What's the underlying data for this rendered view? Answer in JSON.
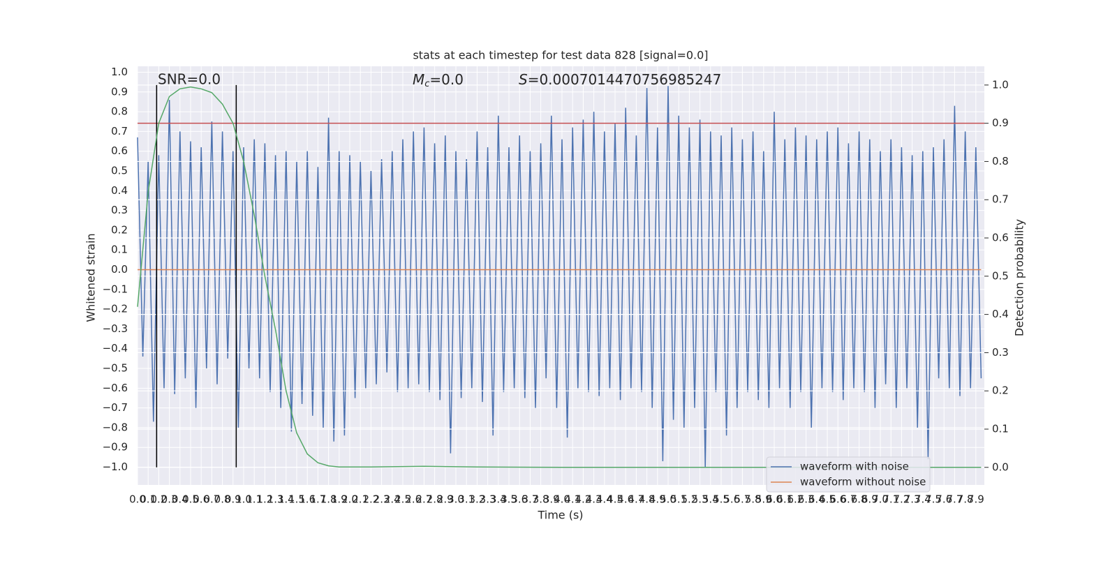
{
  "chart_data": {
    "type": "line",
    "title": "stats at each timestep for test data 828 [signal=0.0]",
    "xlabel": "Time (s)",
    "ylabel": "Whitened strain",
    "y2label": "Detection probability",
    "annotations": {
      "snr": "SNR=0.0",
      "mc": {
        "italic": "M",
        "sub": "c",
        "rest": "=0.0"
      },
      "s": {
        "italic": "S",
        "rest": "=0.0007014470756985247"
      }
    },
    "xlim": [
      0,
      7.98
    ],
    "ylim": [
      -1.09,
      1.03
    ],
    "y2lim": [
      -0.046,
      1.049
    ],
    "grid": true,
    "legend": "lower right",
    "xticks": [
      {
        "value": 0,
        "label": "0.0"
      },
      {
        "value": 0.1,
        "label": "0.1"
      },
      {
        "value": 0.2,
        "label": "0.2"
      },
      {
        "value": 0.3,
        "label": "0.3"
      },
      {
        "value": 0.4,
        "label": "0.4"
      },
      {
        "value": 0.5,
        "label": "0.5"
      },
      {
        "value": 0.6,
        "label": "0.6"
      },
      {
        "value": 0.7,
        "label": "0.7"
      },
      {
        "value": 0.8,
        "label": "0.8"
      },
      {
        "value": 0.9,
        "label": "0.9"
      },
      {
        "value": 1,
        "label": "1.0"
      },
      {
        "value": 1.1,
        "label": "1.1"
      },
      {
        "value": 1.2,
        "label": "1.2"
      },
      {
        "value": 1.3,
        "label": "1.3"
      },
      {
        "value": 1.4,
        "label": "1.4"
      },
      {
        "value": 1.5,
        "label": "1.5"
      },
      {
        "value": 1.6,
        "label": "1.6"
      },
      {
        "value": 1.7,
        "label": "1.7"
      },
      {
        "value": 1.8,
        "label": "1.8"
      },
      {
        "value": 1.9,
        "label": "1.9"
      },
      {
        "value": 2,
        "label": "2.0"
      },
      {
        "value": 2.1,
        "label": "2.1"
      },
      {
        "value": 2.2,
        "label": "2.2"
      },
      {
        "value": 2.3,
        "label": "2.3"
      },
      {
        "value": 2.4,
        "label": "2.4"
      },
      {
        "value": 2.5,
        "label": "2.5"
      },
      {
        "value": 2.6,
        "label": "2.6"
      },
      {
        "value": 2.7,
        "label": "2.7"
      },
      {
        "value": 2.8,
        "label": "2.8"
      },
      {
        "value": 2.9,
        "label": "2.9"
      },
      {
        "value": 3,
        "label": "3.0"
      },
      {
        "value": 3.1,
        "label": "3.1"
      },
      {
        "value": 3.2,
        "label": "3.2"
      },
      {
        "value": 3.3,
        "label": "3.3"
      },
      {
        "value": 3.4,
        "label": "3.4"
      },
      {
        "value": 3.5,
        "label": "3.5"
      },
      {
        "value": 3.6,
        "label": "3.6"
      },
      {
        "value": 3.7,
        "label": "3.7"
      },
      {
        "value": 3.8,
        "label": "3.8"
      },
      {
        "value": 3.9,
        "label": "3.9"
      },
      {
        "value": 4,
        "label": "4.0"
      },
      {
        "value": 4.1,
        "label": "4.1"
      },
      {
        "value": 4.2,
        "label": "4.2"
      },
      {
        "value": 4.3,
        "label": "4.3"
      },
      {
        "value": 4.4,
        "label": "4.4"
      },
      {
        "value": 4.5,
        "label": "4.5"
      },
      {
        "value": 4.6,
        "label": "4.6"
      },
      {
        "value": 4.7,
        "label": "4.7"
      },
      {
        "value": 4.8,
        "label": "4.8"
      },
      {
        "value": 4.9,
        "label": "4.9"
      },
      {
        "value": 5,
        "label": "5.0"
      },
      {
        "value": 5.1,
        "label": "5.1"
      },
      {
        "value": 5.2,
        "label": "5.2"
      },
      {
        "value": 5.3,
        "label": "5.3"
      },
      {
        "value": 5.4,
        "label": "5.4"
      },
      {
        "value": 5.5,
        "label": "5.5"
      },
      {
        "value": 5.6,
        "label": "5.6"
      },
      {
        "value": 5.7,
        "label": "5.7"
      },
      {
        "value": 5.8,
        "label": "5.8"
      },
      {
        "value": 5.9,
        "label": "5.9"
      },
      {
        "value": 6,
        "label": "6.0"
      },
      {
        "value": 6.1,
        "label": "6.1"
      },
      {
        "value": 6.2,
        "label": "6.2"
      },
      {
        "value": 6.3,
        "label": "6.3"
      },
      {
        "value": 6.4,
        "label": "6.4"
      },
      {
        "value": 6.5,
        "label": "6.5"
      },
      {
        "value": 6.6,
        "label": "6.6"
      },
      {
        "value": 6.7,
        "label": "6.7"
      },
      {
        "value": 6.8,
        "label": "6.8"
      },
      {
        "value": 6.9,
        "label": "6.9"
      },
      {
        "value": 7,
        "label": "7.0"
      },
      {
        "value": 7.1,
        "label": "7.1"
      },
      {
        "value": 7.2,
        "label": "7.2"
      },
      {
        "value": 7.3,
        "label": "7.3"
      },
      {
        "value": 7.4,
        "label": "7.4"
      },
      {
        "value": 7.5,
        "label": "7.5"
      },
      {
        "value": 7.6,
        "label": "7.6"
      },
      {
        "value": 7.7,
        "label": "7.7"
      },
      {
        "value": 7.8,
        "label": "7.8"
      },
      {
        "value": 7.9,
        "label": "7.9"
      }
    ],
    "yticks": [
      {
        "value": -1,
        "label": "−1.0"
      },
      {
        "value": -0.9,
        "label": "−0.9"
      },
      {
        "value": -0.8,
        "label": "−0.8"
      },
      {
        "value": -0.7,
        "label": "−0.7"
      },
      {
        "value": -0.6,
        "label": "−0.6"
      },
      {
        "value": -0.5,
        "label": "−0.5"
      },
      {
        "value": -0.4,
        "label": "−0.4"
      },
      {
        "value": -0.3,
        "label": "−0.3"
      },
      {
        "value": -0.2,
        "label": "−0.2"
      },
      {
        "value": -0.1,
        "label": "−0.1"
      },
      {
        "value": 0,
        "label": "0.0"
      },
      {
        "value": 0.1,
        "label": "0.1"
      },
      {
        "value": 0.2,
        "label": "0.2"
      },
      {
        "value": 0.3,
        "label": "0.3"
      },
      {
        "value": 0.4,
        "label": "0.4"
      },
      {
        "value": 0.5,
        "label": "0.5"
      },
      {
        "value": 0.6,
        "label": "0.6"
      },
      {
        "value": 0.7,
        "label": "0.7"
      },
      {
        "value": 0.8,
        "label": "0.8"
      },
      {
        "value": 0.9,
        "label": "0.9"
      },
      {
        "value": 1,
        "label": "1.0"
      }
    ],
    "y2ticks": [
      {
        "value": 0,
        "label": "0.0"
      },
      {
        "value": 0.1,
        "label": "0.1"
      },
      {
        "value": 0.2,
        "label": "0.2"
      },
      {
        "value": 0.3,
        "label": "0.3"
      },
      {
        "value": 0.4,
        "label": "0.4"
      },
      {
        "value": 0.5,
        "label": "0.5"
      },
      {
        "value": 0.6,
        "label": "0.6"
      },
      {
        "value": 0.7,
        "label": "0.7"
      },
      {
        "value": 0.8,
        "label": "0.8"
      },
      {
        "value": 0.9,
        "label": "0.9"
      },
      {
        "value": 1,
        "label": "1.0"
      }
    ],
    "series": [
      {
        "name": "waveform with noise",
        "color": "#4c72b0",
        "x": [
          0,
          0.05,
          0.1,
          0.15,
          0.2,
          0.25,
          0.3,
          0.35,
          0.4,
          0.45,
          0.5,
          0.55,
          0.6,
          0.65,
          0.7,
          0.75,
          0.8,
          0.85,
          0.9,
          0.95,
          1,
          1.05,
          1.1,
          1.15,
          1.2,
          1.25,
          1.3,
          1.35,
          1.4,
          1.45,
          1.5,
          1.55,
          1.6,
          1.65,
          1.7,
          1.75,
          1.8,
          1.85,
          1.9,
          1.95,
          2,
          2.05,
          2.1,
          2.15,
          2.2,
          2.25,
          2.3,
          2.35,
          2.4,
          2.45,
          2.5,
          2.55,
          2.6,
          2.65,
          2.7,
          2.75,
          2.8,
          2.85,
          2.9,
          2.95,
          3,
          3.05,
          3.1,
          3.15,
          3.2,
          3.25,
          3.3,
          3.35,
          3.4,
          3.45,
          3.5,
          3.55,
          3.6,
          3.65,
          3.7,
          3.75,
          3.8,
          3.85,
          3.9,
          3.95,
          4,
          4.05,
          4.1,
          4.15,
          4.2,
          4.25,
          4.3,
          4.35,
          4.4,
          4.45,
          4.5,
          4.55,
          4.6,
          4.65,
          4.7,
          4.75,
          4.8,
          4.85,
          4.9,
          4.95,
          5,
          5.05,
          5.1,
          5.15,
          5.2,
          5.25,
          5.3,
          5.35,
          5.4,
          5.45,
          5.5,
          5.55,
          5.6,
          5.65,
          5.7,
          5.75,
          5.8,
          5.85,
          5.9,
          5.95,
          6,
          6.05,
          6.1,
          6.15,
          6.2,
          6.25,
          6.3,
          6.35,
          6.4,
          6.45,
          6.5,
          6.55,
          6.6,
          6.65,
          6.7,
          6.75,
          6.8,
          6.85,
          6.9,
          6.95,
          7,
          7.05,
          7.1,
          7.15,
          7.2,
          7.25,
          7.3,
          7.35,
          7.4,
          7.45,
          7.5,
          7.55,
          7.6,
          7.65,
          7.7,
          7.75,
          7.8,
          7.85,
          7.9,
          7.95
        ],
        "values": [
          0.67,
          -0.44,
          0.55,
          -0.77,
          0.58,
          -0.6,
          0.86,
          -0.63,
          0.7,
          -0.55,
          0.65,
          -0.7,
          0.62,
          -0.5,
          0.75,
          -0.58,
          0.7,
          -0.45,
          0.6,
          -0.8,
          0.62,
          -0.5,
          0.66,
          -0.55,
          0.64,
          -0.62,
          0.58,
          -0.7,
          0.6,
          -0.82,
          0.55,
          -0.68,
          0.6,
          -0.74,
          0.52,
          -0.8,
          0.77,
          -0.87,
          0.6,
          -0.84,
          0.58,
          -0.65,
          0.55,
          -0.6,
          0.5,
          -0.58,
          0.56,
          -0.52,
          0.6,
          -0.62,
          0.66,
          -0.6,
          0.7,
          -0.58,
          0.72,
          -0.62,
          0.64,
          -0.66,
          0.68,
          -0.93,
          0.6,
          -0.65,
          0.56,
          -0.6,
          0.7,
          -0.67,
          0.62,
          -0.84,
          0.78,
          -0.62,
          0.62,
          -0.6,
          0.68,
          -0.65,
          0.6,
          -0.7,
          0.64,
          -0.55,
          0.78,
          -0.7,
          0.66,
          -0.85,
          0.72,
          -0.6,
          0.76,
          -0.62,
          0.8,
          -0.64,
          0.7,
          -0.6,
          0.74,
          -0.66,
          0.82,
          -0.6,
          0.68,
          -0.62,
          0.92,
          -0.7,
          0.72,
          -0.97,
          0.93,
          -0.76,
          0.78,
          -0.8,
          0.72,
          -0.7,
          0.76,
          -1.0,
          0.7,
          -0.62,
          0.68,
          -0.84,
          0.72,
          -0.7,
          0.66,
          -0.62,
          0.7,
          -0.66,
          0.6,
          -0.7,
          0.8,
          -0.6,
          0.66,
          -0.7,
          0.72,
          -0.62,
          0.68,
          -0.8,
          0.66,
          -0.6,
          0.7,
          -0.62,
          0.72,
          -0.66,
          0.64,
          -0.6,
          0.7,
          -0.62,
          0.66,
          -0.7,
          0.6,
          -0.58,
          0.66,
          -0.7,
          0.62,
          -0.6,
          0.58,
          -0.8,
          0.6,
          -0.96,
          0.62,
          -0.55,
          0.66,
          -0.6,
          0.83,
          -0.64,
          0.7,
          -0.6,
          0.62,
          -0.55
        ]
      },
      {
        "name": "waveform without noise",
        "color": "#dd8452",
        "x": [
          0,
          7.95
        ],
        "values": [
          0,
          0
        ]
      }
    ],
    "detection": {
      "color": "#55a868",
      "axis": "y2",
      "x": [
        0,
        0.1,
        0.2,
        0.3,
        0.4,
        0.5,
        0.6,
        0.7,
        0.8,
        0.9,
        1,
        1.1,
        1.2,
        1.3,
        1.4,
        1.5,
        1.6,
        1.7,
        1.8,
        1.9,
        2.2,
        2.7,
        3.2,
        4,
        5,
        6,
        7,
        7.95
      ],
      "values": [
        0.42,
        0.72,
        0.9,
        0.97,
        0.99,
        0.995,
        0.99,
        0.98,
        0.95,
        0.9,
        0.8,
        0.66,
        0.5,
        0.36,
        0.2,
        0.09,
        0.035,
        0.012,
        0.004,
        0.001,
        0.001,
        0.003,
        0.001,
        0,
        0,
        0,
        0,
        0
      ]
    },
    "threshold": {
      "value": 0.9,
      "axis": "y2",
      "color": "#c44e52"
    },
    "vertical_lines": {
      "x": [
        0.18,
        0.93
      ],
      "range": [
        0,
        1
      ],
      "axis": "y2",
      "color": "#000000"
    }
  }
}
